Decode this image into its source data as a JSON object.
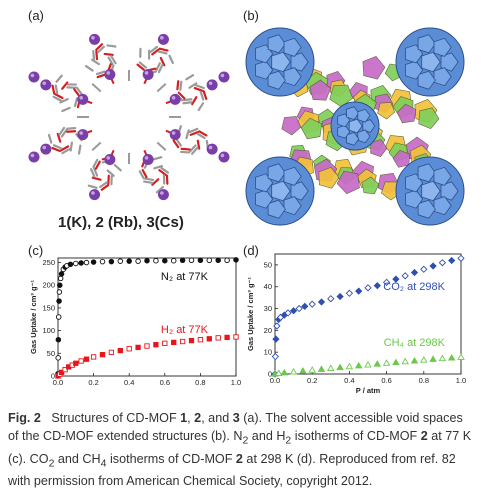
{
  "panels": {
    "a": {
      "label": "(a)",
      "compound_caption": "1(K), 2 (Rb), 3(Cs)"
    },
    "b": {
      "label": "(b)"
    },
    "c": {
      "label": "(c)"
    },
    "d": {
      "label": "(d)"
    }
  },
  "colors": {
    "n2": "#111111",
    "h2": "#e8161b",
    "co2": "#2f4fb3",
    "ch4": "#6cc84a",
    "potassium": "#7a3fa6",
    "oxygen": "#d41f1f",
    "carbon": "#9a9a9a",
    "large_cavity": "#5b8dd6",
    "small_cavity_yellow": "#f2c23a",
    "small_cavity_green": "#7fcf5a",
    "small_cavity_pink": "#c86ac8"
  },
  "chart_data": [
    {
      "panel": "(c)",
      "type": "scatter",
      "xlabel": "",
      "ylabel": "Gas Uptake / cm³ g⁻¹",
      "xlim": [
        0,
        1.0
      ],
      "ylim": [
        0,
        260
      ],
      "xticks": [
        "0.0",
        "0.2",
        "0.4",
        "0.6",
        "0.8",
        "1.0"
      ],
      "yticks": [
        "0",
        "50",
        "100",
        "150",
        "200",
        "250"
      ],
      "series": [
        {
          "name": "N₂ at 77K",
          "x": [
            0.0,
            0.001,
            0.002,
            0.004,
            0.006,
            0.008,
            0.01,
            0.015,
            0.02,
            0.03,
            0.04,
            0.05,
            0.07,
            0.1,
            0.13,
            0.16,
            0.2,
            0.25,
            0.3,
            0.35,
            0.4,
            0.45,
            0.5,
            0.55,
            0.6,
            0.65,
            0.7,
            0.75,
            0.8,
            0.85,
            0.9,
            0.95,
            1.0
          ],
          "y": [
            5,
            40,
            80,
            130,
            165,
            185,
            200,
            215,
            225,
            235,
            240,
            243,
            246,
            248,
            249,
            250,
            251,
            252,
            252,
            253,
            253,
            253,
            254,
            254,
            254,
            254,
            255,
            255,
            255,
            255,
            255,
            255,
            256
          ]
        },
        {
          "name": "H₂ at 77K",
          "x": [
            0.0,
            0.01,
            0.02,
            0.04,
            0.06,
            0.08,
            0.1,
            0.13,
            0.16,
            0.2,
            0.25,
            0.3,
            0.35,
            0.4,
            0.45,
            0.5,
            0.55,
            0.6,
            0.65,
            0.7,
            0.75,
            0.8,
            0.85,
            0.9,
            0.95,
            1.0
          ],
          "y": [
            0,
            4,
            8,
            14,
            20,
            24,
            28,
            33,
            37,
            42,
            47,
            52,
            56,
            60,
            63,
            66,
            69,
            72,
            74,
            76,
            78,
            80,
            82,
            84,
            85,
            86
          ]
        }
      ]
    },
    {
      "panel": "(d)",
      "type": "scatter",
      "xlabel": "P / atm",
      "ylabel": "Gas Uptake / cm³ g⁻¹",
      "xlim": [
        0,
        1.0
      ],
      "ylim": [
        0,
        55
      ],
      "xticks": [
        "0.0",
        "0.2",
        "0.4",
        "0.6",
        "0.8",
        "1.0"
      ],
      "yticks": [
        "0",
        "10",
        "20",
        "30",
        "40",
        "50"
      ],
      "series": [
        {
          "name": "CO₂ at 298K",
          "x": [
            0.0,
            0.002,
            0.005,
            0.01,
            0.02,
            0.03,
            0.05,
            0.07,
            0.1,
            0.13,
            0.16,
            0.2,
            0.25,
            0.3,
            0.35,
            0.4,
            0.45,
            0.5,
            0.55,
            0.6,
            0.65,
            0.7,
            0.75,
            0.8,
            0.85,
            0.9,
            0.95,
            1.0
          ],
          "y": [
            0,
            8,
            16,
            22,
            25,
            26,
            27,
            28,
            29,
            30,
            31,
            32,
            33,
            34.5,
            35.5,
            37,
            38,
            39.5,
            40.5,
            42,
            43.5,
            45,
            46.5,
            48,
            49.5,
            51,
            52,
            53
          ]
        },
        {
          "name": "CH₄ at 298K",
          "x": [
            0.0,
            0.02,
            0.05,
            0.1,
            0.15,
            0.2,
            0.25,
            0.3,
            0.35,
            0.4,
            0.45,
            0.5,
            0.55,
            0.6,
            0.65,
            0.7,
            0.75,
            0.8,
            0.85,
            0.9,
            0.95,
            1.0
          ],
          "y": [
            0,
            0.3,
            0.6,
            1.0,
            1.4,
            1.8,
            2.2,
            2.6,
            3.0,
            3.4,
            3.8,
            4.2,
            4.6,
            5.0,
            5.3,
            5.7,
            6.0,
            6.4,
            6.8,
            7.1,
            7.4,
            7.7
          ]
        }
      ]
    }
  ],
  "caption": {
    "fig_label": "Fig. 2",
    "part1": "Structures of CD-MOF ",
    "c1": "1",
    "sep1": ", ",
    "c2": "2",
    "part2": ", and ",
    "c3": "3",
    "part3": " (a). The solvent accessible void spaces of the CD-MOF extended structures (b). N",
    "sub2a": "2",
    "part4": " and H",
    "sub2b": "2",
    "part5": " isotherms of CD-MOF ",
    "c4": "2",
    "part6": " at 77 K (c). CO",
    "sub2c": "2",
    "part7": " and CH",
    "sub4": "4",
    "part8": " isotherms of CD-MOF ",
    "c5": "2",
    "part9": " at 298 K (d). Reproduced from ref. 82 with permission from American Chemical Society, copyright 2012."
  }
}
